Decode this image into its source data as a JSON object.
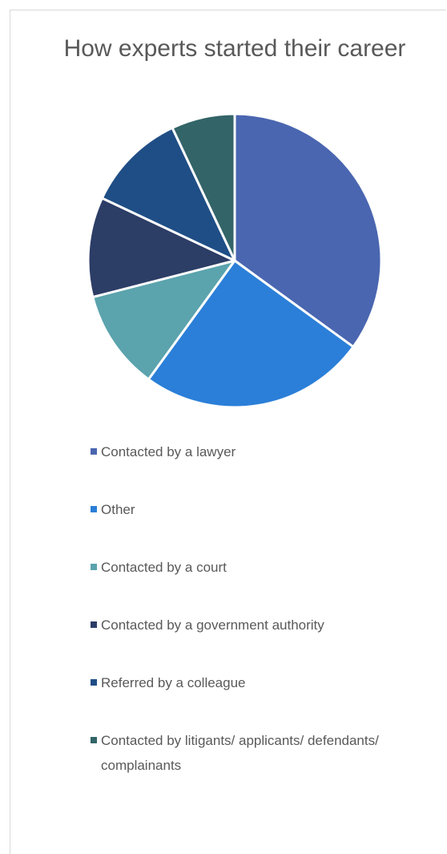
{
  "chart_data": {
    "type": "pie",
    "title": "How experts started their career",
    "categories": [
      "Contacted by a lawyer",
      "Other",
      "Contacted by a court",
      "Contacted by a government authority",
      "Referred by a colleague",
      "Contacted by litigants/ applicants/ defendants/ complainants"
    ],
    "values": [
      35,
      25,
      11,
      11,
      11,
      7
    ],
    "colors": [
      "#4a66b0",
      "#2b7fd8",
      "#5ba3ad",
      "#2c3d66",
      "#1f4e86",
      "#336468"
    ]
  }
}
